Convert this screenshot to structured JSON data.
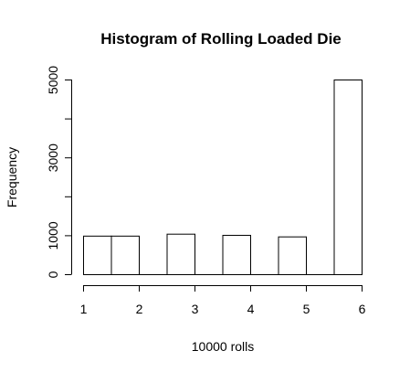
{
  "chart_data": {
    "type": "bar",
    "title": "Histogram of Rolling Loaded Die",
    "xlabel": "10000 rolls",
    "ylabel": "Frequency",
    "bins": [
      {
        "start": 1.0,
        "end": 1.5,
        "value": 990
      },
      {
        "start": 1.5,
        "end": 2.0,
        "value": 990
      },
      {
        "start": 2.0,
        "end": 2.5,
        "value": 0
      },
      {
        "start": 2.5,
        "end": 3.0,
        "value": 1040
      },
      {
        "start": 3.0,
        "end": 3.5,
        "value": 0
      },
      {
        "start": 3.5,
        "end": 4.0,
        "value": 1010
      },
      {
        "start": 4.0,
        "end": 4.5,
        "value": 0
      },
      {
        "start": 4.5,
        "end": 5.0,
        "value": 970
      },
      {
        "start": 5.0,
        "end": 5.5,
        "value": 0
      },
      {
        "start": 5.5,
        "end": 6.0,
        "value": 5000
      }
    ],
    "xticks": [
      1,
      2,
      3,
      4,
      5,
      6
    ],
    "yticks": [
      0,
      1000,
      2000,
      3000,
      4000,
      5000
    ],
    "yticklabels": [
      "0",
      "1000",
      "",
      "3000",
      "",
      "5000"
    ],
    "xlim": [
      1,
      6
    ],
    "ylim": [
      0,
      5000
    ],
    "grid": false,
    "legend": "none"
  }
}
